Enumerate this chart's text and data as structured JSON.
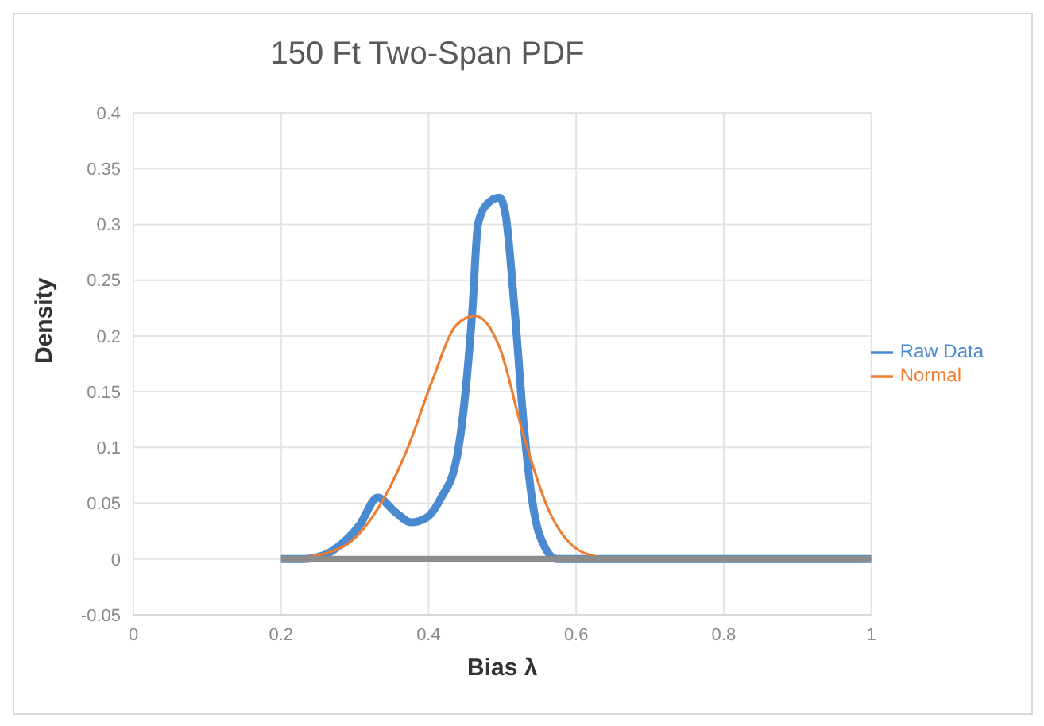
{
  "chart_data": {
    "type": "line",
    "title": "150 Ft Two-Span PDF",
    "xlabel": "Bias λ",
    "ylabel": "Density",
    "xlim": [
      0,
      1
    ],
    "xticks": [
      0,
      0.2,
      0.4,
      0.6,
      0.8,
      1
    ],
    "ylim": [
      -0.05,
      0.4
    ],
    "yticks": [
      -0.05,
      0,
      0.05,
      0.1,
      0.15,
      0.2,
      0.25,
      0.3,
      0.35,
      0.4
    ],
    "grid": true,
    "legend": "right",
    "marker": "none",
    "series": [
      {
        "color": "#8c8c8c",
        "x": [
          0.2,
          1
        ],
        "values": [
          0,
          0
        ]
      },
      {
        "name": "Raw Data",
        "color": "#4a8ad0",
        "x": [
          0.2,
          0.23,
          0.256,
          0.281,
          0.306,
          0.331,
          0.355,
          0.376,
          0.397,
          0.417,
          0.438,
          0.45,
          0.459,
          0.467,
          0.479,
          0.496,
          0.504,
          0.517,
          0.529,
          0.541,
          0.558,
          0.574,
          0.61,
          1
        ],
        "values": [
          0,
          0,
          0.003,
          0.013,
          0.03,
          0.055,
          0.042,
          0.033,
          0.037,
          0.055,
          0.09,
          0.15,
          0.22,
          0.3,
          0.318,
          0.324,
          0.31,
          0.22,
          0.12,
          0.05,
          0.01,
          0,
          0,
          0
        ]
      },
      {
        "name": "Normal",
        "color": "#ed7d31",
        "x": [
          0.215,
          0.281,
          0.331,
          0.372,
          0.405,
          0.438,
          0.463,
          0.496,
          0.529,
          0.562,
          0.595,
          0.628,
          0.645
        ],
        "values": [
          0,
          0.01,
          0.045,
          0.1,
          0.16,
          0.21,
          0.218,
          0.19,
          0.11,
          0.045,
          0.012,
          0.002,
          0
        ]
      }
    ]
  }
}
